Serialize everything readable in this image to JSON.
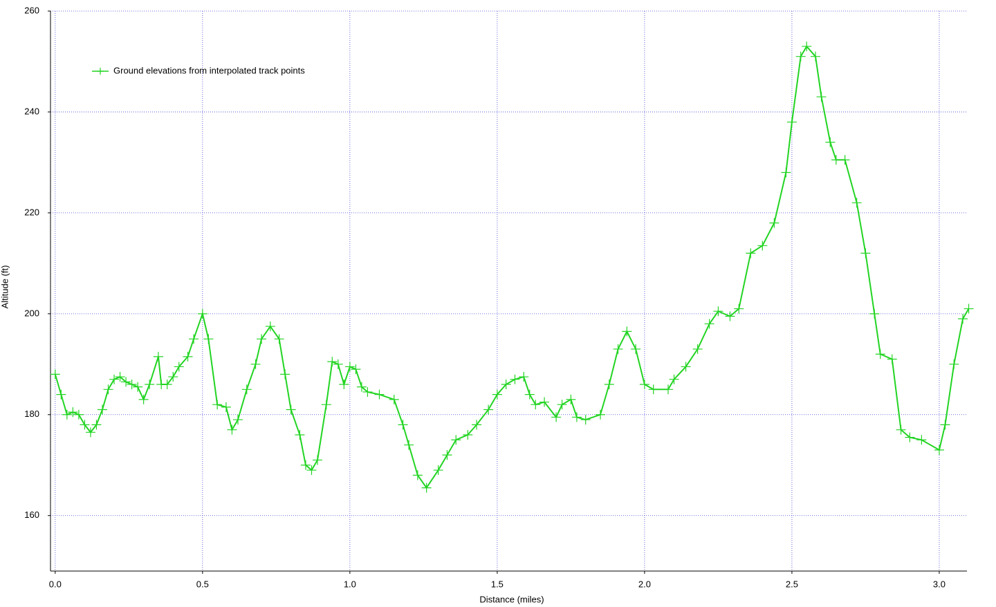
{
  "chart_data": {
    "type": "line",
    "x_label": "Distance (miles)",
    "y_label": "Altitude (ft)",
    "xlim": [
      -0.016,
      3.094
    ],
    "ylim": [
      149,
      260
    ],
    "xticks": [
      {
        "value": 0,
        "label": "0.0"
      },
      0.5,
      {
        "value": 1,
        "label": "1.0"
      },
      1.5,
      {
        "value": 2,
        "label": "2.0"
      },
      2.5,
      {
        "value": 3,
        "label": "3.0"
      }
    ],
    "yticks": [
      160,
      180,
      200,
      220,
      240,
      260
    ],
    "grid": true,
    "legend": "top-left",
    "series": [
      {
        "name": "Ground elevations from interpolated track points",
        "color": "#22d422",
        "x": [
          0.0,
          0.02,
          0.04,
          0.06,
          0.08,
          0.1,
          0.12,
          0.14,
          0.16,
          0.18,
          0.2,
          0.22,
          0.24,
          0.26,
          0.28,
          0.3,
          0.32,
          0.35,
          0.36,
          0.38,
          0.4,
          0.42,
          0.45,
          0.47,
          0.5,
          0.52,
          0.55,
          0.58,
          0.6,
          0.62,
          0.65,
          0.68,
          0.7,
          0.73,
          0.76,
          0.78,
          0.8,
          0.83,
          0.85,
          0.87,
          0.89,
          0.92,
          0.94,
          0.96,
          0.98,
          1.0,
          1.02,
          1.04,
          1.06,
          1.1,
          1.15,
          1.18,
          1.2,
          1.23,
          1.26,
          1.3,
          1.33,
          1.36,
          1.4,
          1.43,
          1.47,
          1.5,
          1.53,
          1.56,
          1.59,
          1.61,
          1.63,
          1.66,
          1.7,
          1.72,
          1.75,
          1.77,
          1.8,
          1.85,
          1.88,
          1.91,
          1.94,
          1.97,
          2.0,
          2.03,
          2.08,
          2.1,
          2.14,
          2.18,
          2.22,
          2.25,
          2.29,
          2.32,
          2.36,
          2.4,
          2.44,
          2.48,
          2.5,
          2.53,
          2.55,
          2.58,
          2.6,
          2.63,
          2.65,
          2.68,
          2.72,
          2.75,
          2.78,
          2.8,
          2.84,
          2.87,
          2.9,
          2.94,
          3.0,
          3.02,
          3.05,
          3.08,
          3.1
        ],
        "values": [
          188,
          184,
          180,
          180.5,
          180,
          178,
          176.5,
          178,
          181,
          185,
          187,
          187.5,
          186.5,
          186,
          185.5,
          183,
          186,
          191.5,
          186,
          186,
          187.5,
          189.5,
          191.5,
          195,
          200,
          195,
          182,
          181.5,
          177,
          179,
          185,
          190,
          195,
          197.5,
          195,
          188,
          181,
          176,
          170,
          169,
          171,
          182,
          190.5,
          190,
          186,
          189.5,
          189,
          185.5,
          184.5,
          184,
          183,
          178,
          174,
          168,
          165.5,
          169,
          172,
          175,
          176,
          178,
          181,
          184,
          186,
          187,
          187.5,
          184,
          182,
          182.5,
          179.5,
          182,
          183,
          179.5,
          179,
          180,
          186,
          193,
          196.5,
          193,
          186,
          185,
          185,
          187,
          189.5,
          193,
          198,
          200.5,
          199.5,
          201,
          212,
          213.5,
          218,
          228,
          238,
          251,
          253,
          251,
          243,
          234,
          230.5,
          230.5,
          222,
          212,
          200,
          192,
          191,
          177,
          175.5,
          175,
          173,
          178,
          190,
          199,
          201
        ]
      }
    ]
  }
}
